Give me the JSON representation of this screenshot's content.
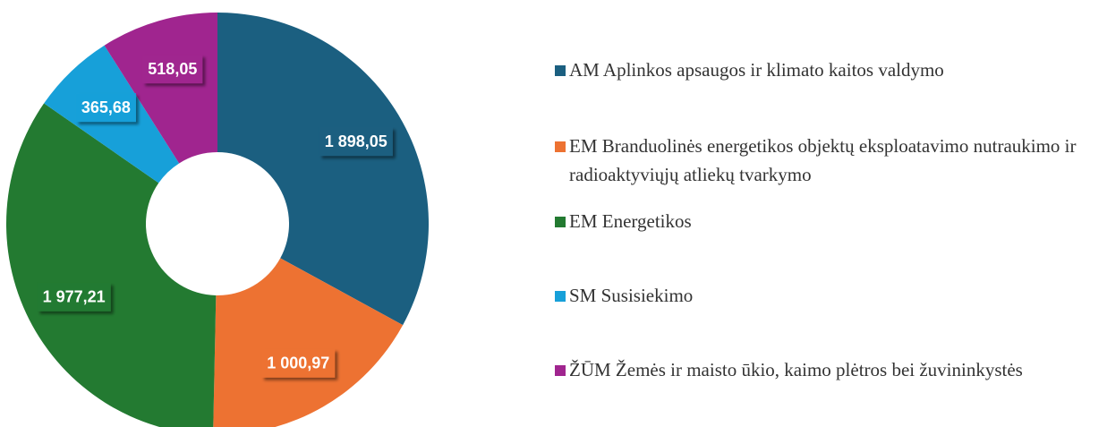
{
  "chart_data": {
    "type": "donut",
    "categories": [
      "AM Aplinkos apsaugos ir klimato kaitos valdymo",
      "EM Branduolinės energetikos objektų eksploatavimo nutraukimo ir radioaktyviųjų atliekų tvarkymo",
      "EM Energetikos",
      "SM Susisiekimo",
      "ŽŪM Žemės ir maisto ūkio, kaimo plėtros bei žuvininkystės"
    ],
    "values": [
      1898.05,
      1000.97,
      1977.21,
      365.68,
      518.05
    ],
    "value_labels": [
      "1 898,05",
      "1 000,97",
      "1 977,21",
      "365,68",
      "518,05"
    ],
    "colors": [
      "#1b5f80",
      "#ed7232",
      "#237a31",
      "#17a0d9",
      "#a0258f"
    ],
    "legend": "right"
  }
}
